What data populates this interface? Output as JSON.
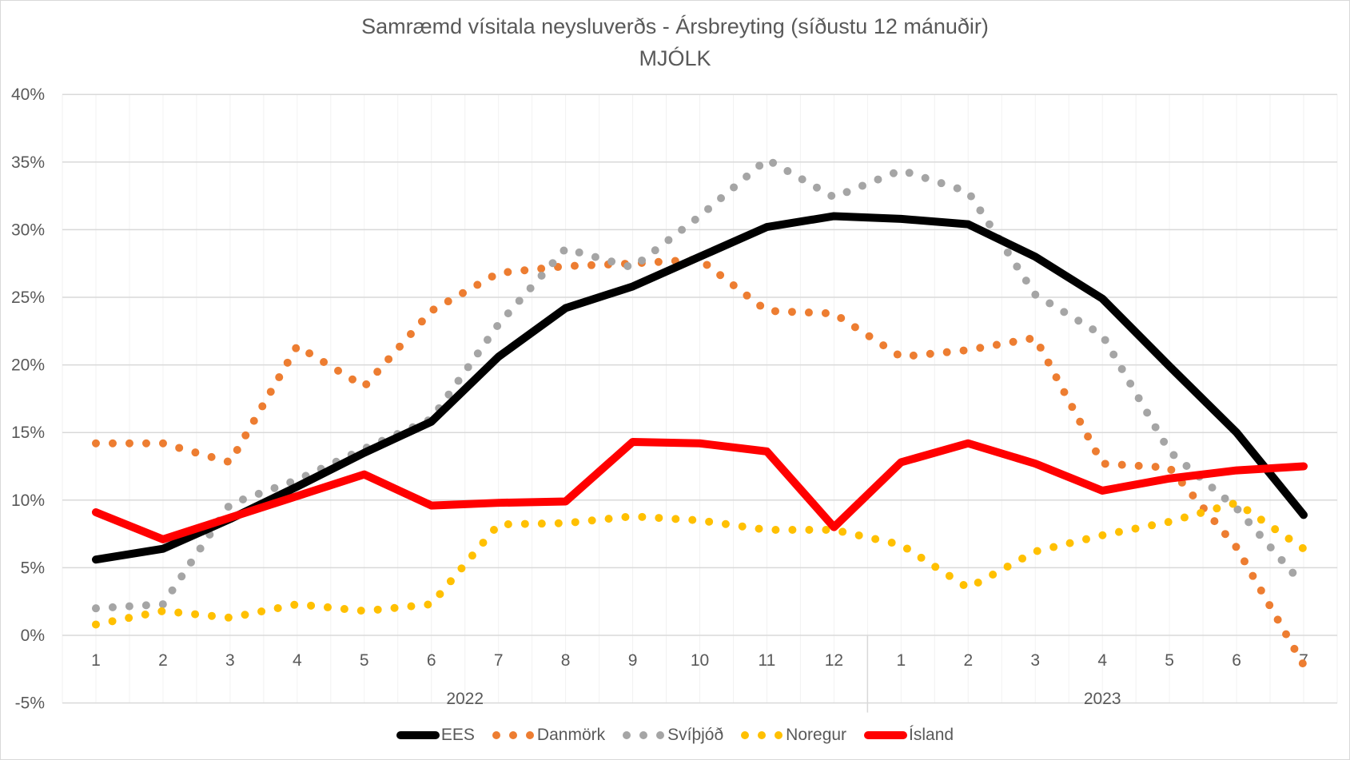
{
  "chart_data": {
    "type": "line",
    "title": "Samræmd vísitala neysluverðs - Ársbreyting (síðustu 12 mánuðir)",
    "subtitle": "MJÓLK",
    "categories": [
      "1",
      "2",
      "3",
      "4",
      "5",
      "6",
      "7",
      "8",
      "9",
      "10",
      "11",
      "12",
      "1",
      "2",
      "3",
      "4",
      "5",
      "6",
      "7"
    ],
    "year_labels": [
      "2022",
      "2023"
    ],
    "ylim": [
      -5,
      40
    ],
    "yticks": [
      "-5%",
      "0%",
      "5%",
      "10%",
      "15%",
      "20%",
      "25%",
      "30%",
      "35%",
      "40%"
    ],
    "grid": true,
    "legend_position": "bottom",
    "series": [
      {
        "name": "EES",
        "color": "#000000",
        "style": "solid",
        "values": [
          5.6,
          6.4,
          8.6,
          11.0,
          13.5,
          15.8,
          20.6,
          24.2,
          25.8,
          28.0,
          30.2,
          31.0,
          30.8,
          30.4,
          28.0,
          24.9,
          19.9,
          15.0,
          8.9
        ]
      },
      {
        "name": "Danmörk",
        "color": "#ED7D31",
        "style": "dotted",
        "values": [
          14.2,
          14.2,
          12.8,
          21.4,
          18.4,
          24.0,
          26.8,
          27.3,
          27.5,
          27.8,
          24.0,
          23.8,
          20.6,
          21.1,
          22.0,
          12.7,
          12.4,
          6.5,
          -2.2
        ]
      },
      {
        "name": "Svíþjóð",
        "color": "#A5A5A5",
        "style": "dotted",
        "values": [
          2.0,
          2.3,
          9.7,
          11.5,
          13.8,
          16.0,
          23.0,
          28.6,
          27.2,
          31.0,
          35.2,
          32.4,
          34.4,
          32.8,
          25.2,
          22.2,
          13.6,
          9.4,
          3.7
        ]
      },
      {
        "name": "Noregur",
        "color": "#FFC000",
        "style": "dotted",
        "values": [
          0.8,
          1.8,
          1.3,
          2.3,
          1.8,
          2.3,
          8.2,
          8.3,
          8.8,
          8.5,
          7.8,
          7.8,
          6.7,
          3.5,
          6.2,
          7.4,
          8.4,
          9.8,
          6.4
        ]
      },
      {
        "name": "Ísland",
        "color": "#FF0000",
        "style": "solid",
        "values": [
          9.1,
          7.1,
          8.7,
          10.3,
          11.9,
          9.6,
          9.8,
          9.9,
          14.3,
          14.2,
          13.6,
          8.0,
          12.8,
          14.2,
          12.7,
          10.7,
          11.6,
          12.2,
          12.5
        ]
      }
    ]
  }
}
